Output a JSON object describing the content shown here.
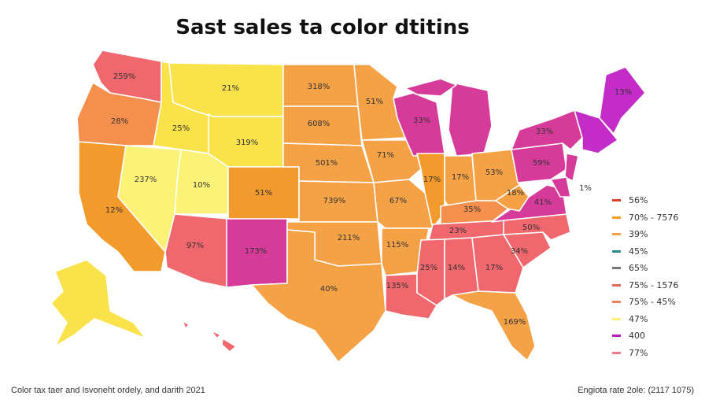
{
  "title": "Sast sales ta color dtitins",
  "colors": {
    "yellow": "#f7e64a",
    "lightyellow": "#fdf278",
    "orange": "#f5a146",
    "deeporange": "#f29a2c",
    "salmon": "#f0676d",
    "coral": "#f36f5b",
    "magenta": "#d63b9a",
    "violet": "#c32cc7",
    "redorange": "#ee6b4a"
  },
  "states": [
    {
      "id": "WA",
      "label": "259%"
    },
    {
      "id": "OR",
      "label": "28%"
    },
    {
      "id": "CA",
      "label": "12%"
    },
    {
      "id": "NV",
      "label": "237%"
    },
    {
      "id": "ID",
      "label": "25%"
    },
    {
      "id": "MT",
      "label": "21%"
    },
    {
      "id": "WY",
      "label": "319%"
    },
    {
      "id": "UT",
      "label": "10%"
    },
    {
      "id": "CO",
      "label": "51%"
    },
    {
      "id": "AZ",
      "label": "97%"
    },
    {
      "id": "NM",
      "label": "173%"
    },
    {
      "id": "ND",
      "label": "318%"
    },
    {
      "id": "SD",
      "label": "608%"
    },
    {
      "id": "NE",
      "label": "501%"
    },
    {
      "id": "KS",
      "label": "739%"
    },
    {
      "id": "OK",
      "label": "211%"
    },
    {
      "id": "TX",
      "label": "40%"
    },
    {
      "id": "MN",
      "label": "51%"
    },
    {
      "id": "IA",
      "label": "71%"
    },
    {
      "id": "MO",
      "label": "67%"
    },
    {
      "id": "AR",
      "label": "115%"
    },
    {
      "id": "LA",
      "label": "135%"
    },
    {
      "id": "WI",
      "label": "33%"
    },
    {
      "id": "IL",
      "label": "17%"
    },
    {
      "id": "MI",
      "label": ""
    },
    {
      "id": "IN",
      "label": "17%"
    },
    {
      "id": "OH",
      "label": "53%"
    },
    {
      "id": "KY",
      "label": "35%"
    },
    {
      "id": "TN",
      "label": "23%"
    },
    {
      "id": "MS",
      "label": "25%"
    },
    {
      "id": "AL",
      "label": "14%"
    },
    {
      "id": "GA",
      "label": "17%"
    },
    {
      "id": "FL",
      "label": "169%"
    },
    {
      "id": "SC",
      "label": "34%"
    },
    {
      "id": "NC",
      "label": "50%"
    },
    {
      "id": "VA",
      "label": "41%"
    },
    {
      "id": "WV",
      "label": "18%"
    },
    {
      "id": "PA",
      "label": "59%"
    },
    {
      "id": "NY",
      "label": "33%"
    },
    {
      "id": "ME",
      "label": "13%"
    },
    {
      "id": "NE_small",
      "label": "1%"
    },
    {
      "id": "AK",
      "label": ""
    },
    {
      "id": "HI",
      "label": ""
    }
  ],
  "legend": [
    {
      "color": "#d9432a",
      "label": "56%"
    },
    {
      "color": "#f2a01e",
      "label": "70% - 7576"
    },
    {
      "color": "#f5a146",
      "label": "39%"
    },
    {
      "color": "#2a8a8a",
      "label": "45%"
    },
    {
      "color": "#777777",
      "label": "65%"
    },
    {
      "color": "#e36a5a",
      "label": "75% - 1576"
    },
    {
      "color": "#f08060",
      "label": "75% - 45%"
    },
    {
      "color": "#fdf278",
      "label": "47%"
    },
    {
      "color": "#b51fc0",
      "label": "400"
    },
    {
      "color": "#f07a8a",
      "label": "77%"
    }
  ],
  "footer_left": "Color tax taer and Isvoneht ordely, and darith 2021",
  "footer_right": "Engiota rate 2ole: (2117 1075)"
}
